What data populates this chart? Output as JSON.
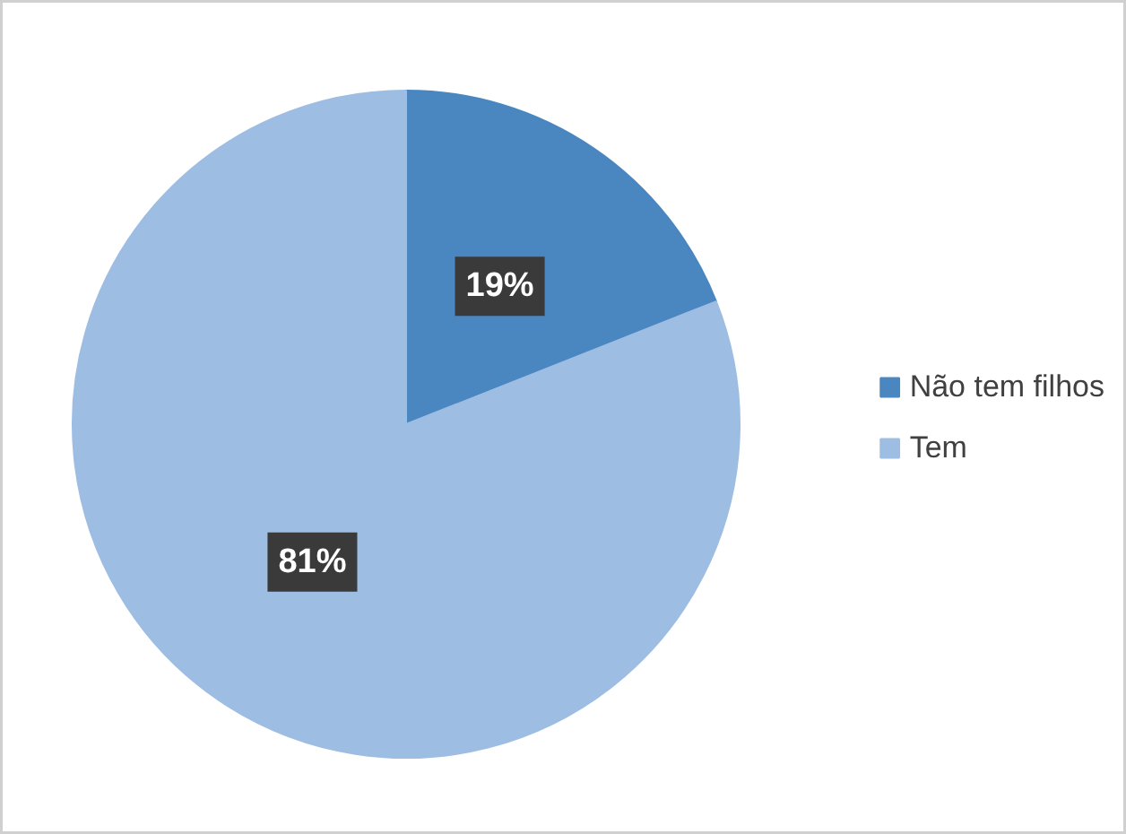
{
  "chart_data": {
    "type": "pie",
    "categories": [
      "Não tem filhos",
      "Tem"
    ],
    "values": [
      19,
      81
    ],
    "colors": [
      "#4a86c0",
      "#9dbde3"
    ],
    "value_labels": [
      "19%",
      "81%"
    ],
    "legend": "right"
  }
}
